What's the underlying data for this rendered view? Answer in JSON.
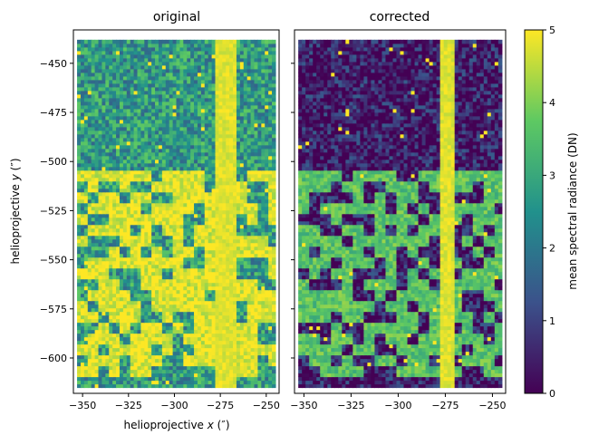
{
  "chart_data": [
    {
      "type": "heatmap",
      "title": "original",
      "xlabel": "helioprojective x (″)",
      "ylabel": "helioprojective y (″)",
      "xlim": [
        -355,
        -243
      ],
      "ylim": [
        -618,
        -433
      ],
      "x_ticks": [
        -350,
        -325,
        -300,
        -275,
        -250
      ],
      "x_tick_labels": [
        "−350",
        "−325",
        "−300",
        "−275",
        "−250"
      ],
      "y_ticks": [
        -450,
        -475,
        -500,
        -525,
        -550,
        -575,
        -600
      ],
      "y_tick_labels": [
        "−450",
        "−475",
        "−500",
        "−525",
        "−550",
        "−575",
        "−600"
      ],
      "data_extent": {
        "x": [
          -353,
          -245
        ],
        "y": [
          -615,
          -438
        ]
      },
      "features": {
        "bright_lane_x": -272,
        "bright_lane_width": 11,
        "bright_region_y": [
          -610,
          -505
        ],
        "background_level": 2.7,
        "region_level": 4.8,
        "lane_level": 5
      }
    },
    {
      "type": "heatmap",
      "title": "corrected",
      "xlabel": "",
      "ylabel": "",
      "xlim": [
        -355,
        -243
      ],
      "ylim": [
        -618,
        -433
      ],
      "x_ticks": [
        -350,
        -325,
        -300,
        -275,
        -250
      ],
      "x_tick_labels": [
        "−350",
        "−325",
        "−300",
        "−275",
        "−250"
      ],
      "y_ticks": [
        -450,
        -475,
        -500,
        -525,
        -550,
        -575,
        -600
      ],
      "data_extent": {
        "x": [
          -353,
          -245
        ],
        "y": [
          -615,
          -438
        ]
      },
      "features": {
        "bright_lane_x": -274,
        "bright_lane_width": 8,
        "bright_region_y": [
          -610,
          -505
        ],
        "background_level": 0.4,
        "region_level": 3.6,
        "lane_level": 5
      }
    }
  ],
  "colorbar": {
    "label": "mean spectral radiance (DN)",
    "range": [
      0,
      5
    ],
    "ticks": [
      0,
      1,
      2,
      3,
      4,
      5
    ],
    "tick_labels": [
      "0",
      "1",
      "2",
      "3",
      "4",
      "5"
    ],
    "colormap": "viridis",
    "colors": [
      "#440154",
      "#3b528b",
      "#21918c",
      "#5ec962",
      "#fde725"
    ]
  }
}
